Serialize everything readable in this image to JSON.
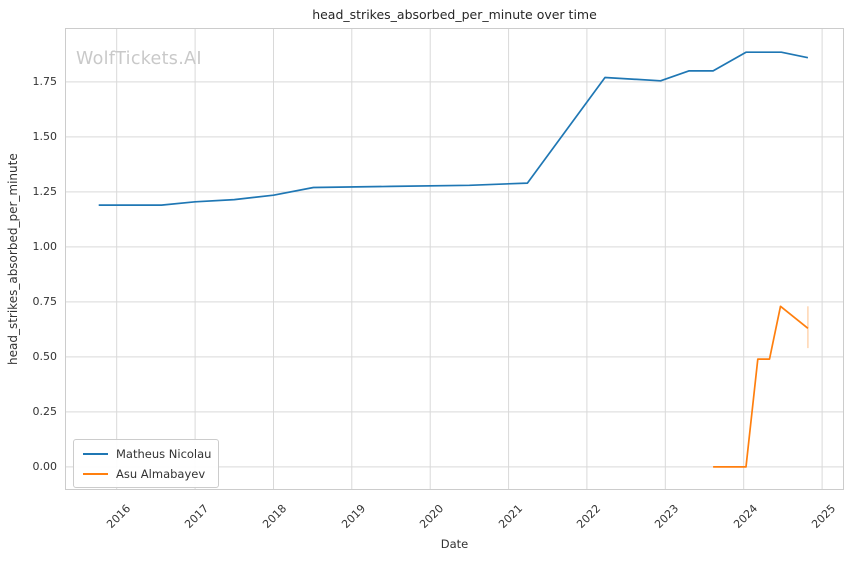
{
  "watermark": "WolfTickets.AI",
  "chart_data": {
    "type": "line",
    "title": "head_strikes_absorbed_per_minute over time",
    "xlabel": "Date",
    "ylabel": "head_strikes_absorbed_per_minute",
    "x_axis_unit": "year (decimal)",
    "xlim": [
      2015.34,
      2025.28
    ],
    "ylim": [
      -0.105,
      1.995
    ],
    "xticks": [
      2016,
      2017,
      2018,
      2019,
      2020,
      2021,
      2022,
      2023,
      2024,
      2025
    ],
    "yticks": [
      0.0,
      0.25,
      0.5,
      0.75,
      1.0,
      1.25,
      1.5,
      1.75
    ],
    "ytick_labels": [
      "0.00",
      "0.25",
      "0.50",
      "0.75",
      "1.00",
      "1.25",
      "1.50",
      "1.75"
    ],
    "grid": true,
    "legend_position": "lower-left",
    "series": [
      {
        "name": "Matheus Nicolau",
        "color": "#1f77b4",
        "points_x": [
          2015.77,
          2016.57,
          2017.0,
          2017.5,
          2018.0,
          2018.51,
          2019.5,
          2020.5,
          2021.24,
          2022.23,
          2022.94,
          2023.3,
          2023.61,
          2024.03,
          2024.48,
          2024.82
        ],
        "points_y": [
          1.19,
          1.19,
          1.205,
          1.215,
          1.235,
          1.27,
          1.275,
          1.28,
          1.29,
          1.77,
          1.755,
          1.8,
          1.8,
          1.885,
          1.885,
          1.86
        ]
      },
      {
        "name": "Asu Almabayev",
        "color": "#ff7f0e",
        "points_x": [
          2023.61,
          2024.03,
          2024.18,
          2024.33,
          2024.47,
          2024.82
        ],
        "points_y": [
          0.0,
          0.0,
          0.49,
          0.49,
          0.73,
          0.63
        ],
        "end_whisker": {
          "x": 2024.82,
          "y_low": 0.54,
          "y_high": 0.73
        }
      }
    ],
    "colors": {
      "grid": "#d9d9d9",
      "spine": "#cccccc",
      "text": "#333333",
      "title_text": "#262626",
      "watermark": "#c9c9c9"
    }
  }
}
